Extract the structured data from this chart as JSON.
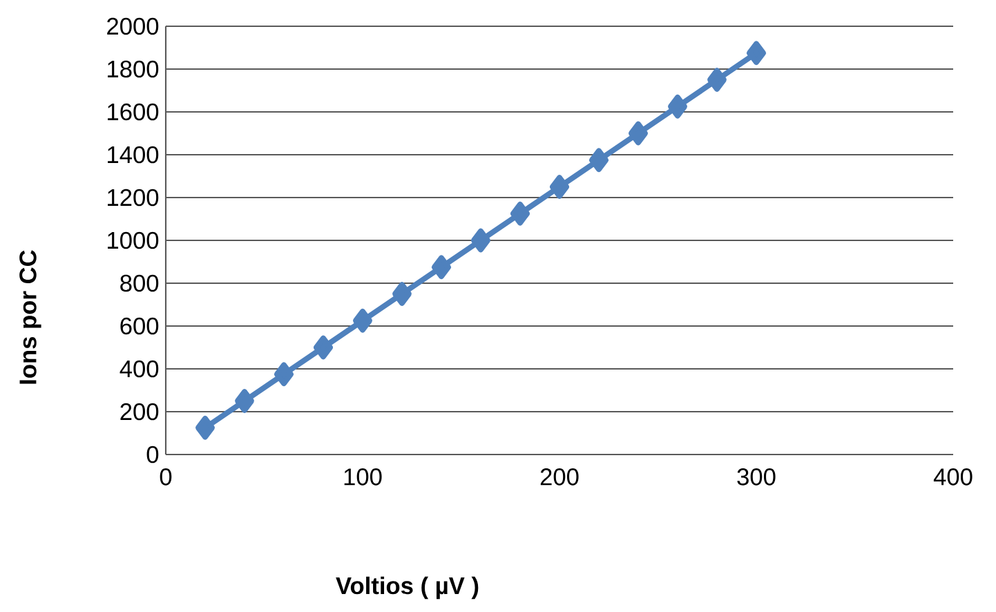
{
  "chart_data": {
    "type": "line",
    "xlabel": "Voltios ( µV )",
    "ylabel": "Ions por CC",
    "x": [
      20,
      40,
      60,
      80,
      100,
      120,
      140,
      160,
      180,
      200,
      220,
      240,
      260,
      280,
      300
    ],
    "series": [
      {
        "color": "#4f81bd",
        "values": [
          125,
          250,
          375,
          500,
          625,
          750,
          875,
          1000,
          1125,
          1250,
          1375,
          1500,
          1625,
          1750,
          1875
        ]
      }
    ],
    "xlim": [
      0,
      400
    ],
    "xticks": [
      0,
      100,
      200,
      300,
      400
    ],
    "ylim": [
      0,
      2000
    ],
    "yticks": [
      0,
      200,
      400,
      600,
      800,
      1000,
      1200,
      1400,
      1600,
      1800,
      2000
    ],
    "grid": "y",
    "marker": "diamond",
    "line_style": "solid"
  }
}
